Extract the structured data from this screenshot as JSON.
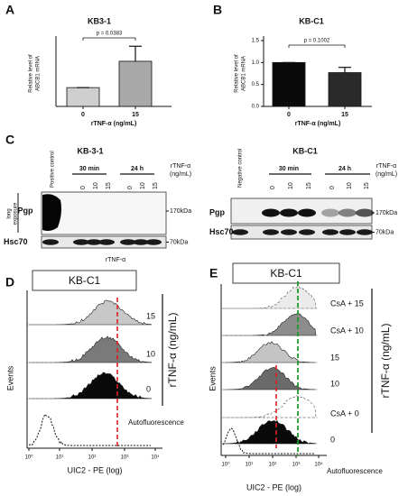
{
  "panel_labels": [
    "A",
    "B",
    "C",
    "D",
    "E"
  ],
  "chart_data": [
    {
      "type": "bar",
      "title": "KB3-1",
      "categories": [
        "0",
        "15"
      ],
      "values": [
        1,
        2.4
      ],
      "errors": [
        0,
        0.8
      ],
      "colors": [
        "#cfcfcf",
        "#a9a9a9"
      ],
      "ylim": [
        0,
        3.5
      ],
      "y_label": [
        "Relative level of",
        "ABCB1 mRNA"
      ],
      "x_label": "rTNF-α (ng/mL)",
      "annotation": "p = 0.0383"
    },
    {
      "type": "bar",
      "title": "KB-C1",
      "categories": [
        "0",
        "15"
      ],
      "values": [
        1.0,
        0.77
      ],
      "errors": [
        0,
        0.12
      ],
      "colors": [
        "#0a0a0a",
        "#2a2a2a"
      ],
      "ylim": [
        0,
        1.5
      ],
      "yticks": [
        {
          "value": 0,
          "label": "0.0"
        },
        {
          "value": 0.5,
          "label": "0.5"
        },
        {
          "value": 1,
          "label": "1.0"
        },
        {
          "value": 1.5,
          "label": "1.5"
        }
      ],
      "y_label": [
        "Relative level of",
        "ABCB1 mRNA"
      ],
      "x_label": "rTNF-α (ng/mL)",
      "annotation": "p = 0.1002"
    }
  ],
  "blots": [
    {
      "title": "KB-3-1",
      "control": "Positive control",
      "times": [
        "30 min",
        "24 h"
      ],
      "lanes": [
        "0",
        "10",
        "15",
        "0",
        "10",
        "15"
      ],
      "treatment": [
        "rTNF-α",
        "(ng/mL)"
      ],
      "exposure": [
        "long",
        "exposure"
      ],
      "rows": [
        "Pgp",
        "Hsc70"
      ],
      "sizes": [
        "170kDa",
        "70kDa"
      ],
      "footer": "rTNF-α"
    },
    {
      "title": "KB-C1",
      "control": "Negative control",
      "times": [
        "30 min",
        "24 h"
      ],
      "lanes": [
        "0",
        "10",
        "15",
        "0",
        "10",
        "15"
      ],
      "treatment": [
        "rTNF-α",
        "(ng/mL)"
      ],
      "rows": [
        "Pgp",
        "Hsc70"
      ],
      "sizes": [
        "170kDa",
        "70kDa"
      ]
    }
  ],
  "flow": [
    {
      "title": "KB-C1",
      "rows": [
        "15",
        "10",
        "0"
      ],
      "autofluorescence": "Autofluorescence",
      "group_label": "rTNF-α (ng/mL)",
      "y_label": "Events",
      "x_label": "UIC2 - PE (log)",
      "xticks": [
        "10⁰",
        "10¹",
        "10²",
        "10³",
        "10⁴"
      ]
    },
    {
      "title": "KB-C1",
      "rows": [
        "CsA + 15",
        "CsA + 10",
        "15",
        "10",
        "CsA + 0",
        "0"
      ],
      "autofluorescence": "Autofluorescence",
      "group_label": "rTNF-α (ng/mL)",
      "y_label": "Events",
      "x_label": "UIC2 - PE (log)",
      "xticks": [
        "10⁰",
        "10¹",
        "10²",
        "10³",
        "10⁴"
      ]
    }
  ]
}
